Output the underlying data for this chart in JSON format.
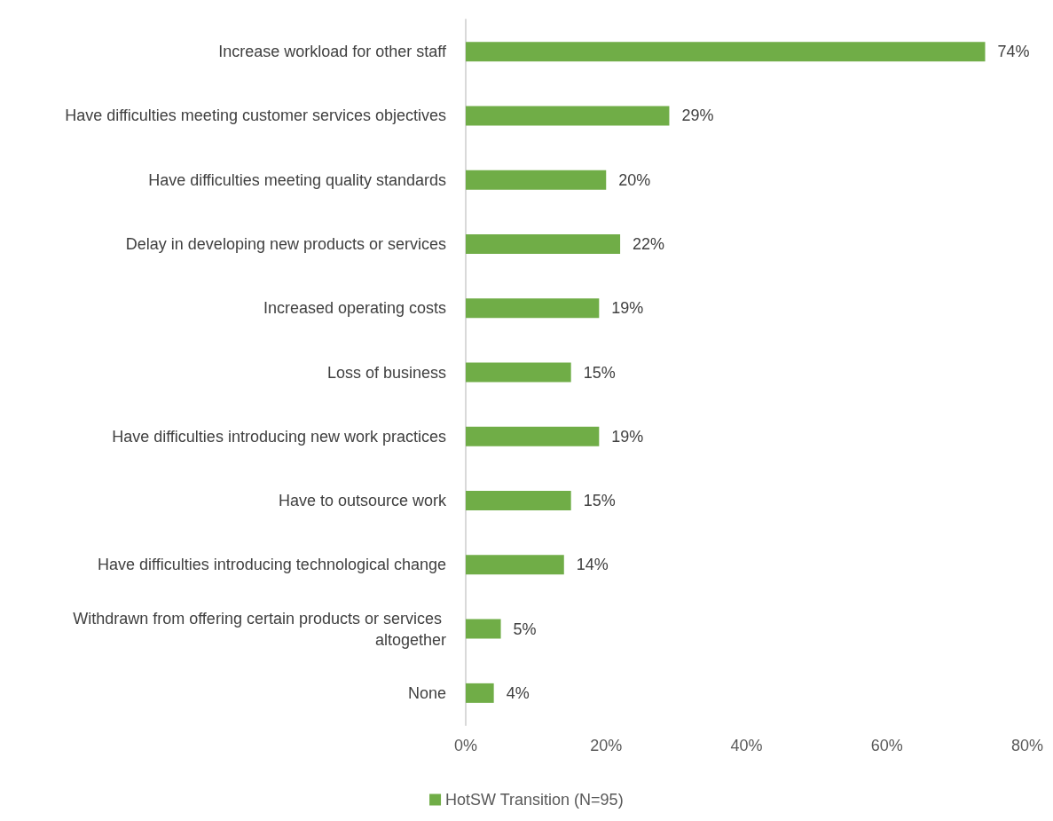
{
  "chart_data": {
    "type": "bar",
    "orientation": "horizontal",
    "categories": [
      "Increase workload for other staff",
      "Have difficulties meeting customer services objectives",
      "Have difficulties meeting quality standards",
      "Delay in developing new products or services",
      "Increased operating costs",
      "Loss of business",
      "Have difficulties introducing new work practices",
      "Have to outsource work",
      "Have difficulties introducing technological change",
      "Withdrawn from offering certain products or services altogether",
      "None"
    ],
    "series": [
      {
        "name": "HotSW Transition (N=95)",
        "color": "#70ad47",
        "values": [
          74,
          29,
          20,
          22,
          19,
          15,
          19,
          15,
          14,
          5,
          4
        ],
        "value_labels": [
          "74%",
          "29%",
          "20%",
          "22%",
          "19%",
          "15%",
          "19%",
          "15%",
          "14%",
          "5%",
          "4%"
        ]
      }
    ],
    "xlim": [
      0,
      80
    ],
    "xticks": [
      {
        "value": 0,
        "label": "0%"
      },
      {
        "value": 20,
        "label": "20%"
      },
      {
        "value": 40,
        "label": "40%"
      },
      {
        "value": 60,
        "label": "60%"
      },
      {
        "value": 80,
        "label": "80%"
      }
    ],
    "grid": false,
    "legend": "bottom"
  }
}
